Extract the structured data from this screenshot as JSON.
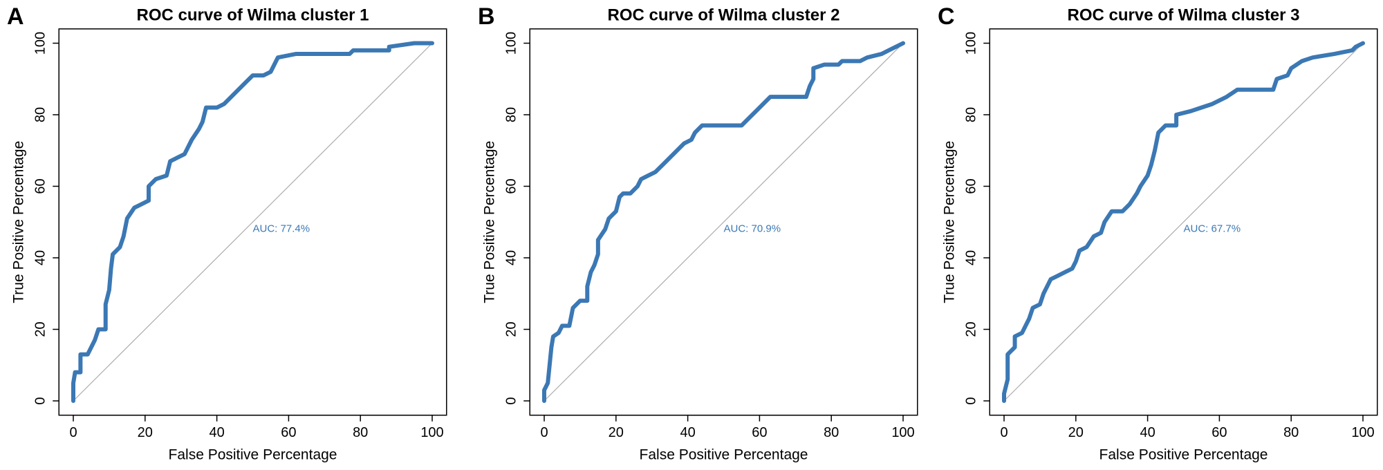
{
  "chart_data": [
    {
      "type": "line",
      "panel_label": "A",
      "title": "ROC curve of Wilma cluster 1",
      "xlabel": "False Positive Percentage",
      "ylabel": "True Positive Percentage",
      "annotation": "AUC: 77.4%",
      "xlim": [
        0,
        100
      ],
      "ylim": [
        0,
        100
      ],
      "xticks": [
        0,
        20,
        40,
        60,
        80,
        100
      ],
      "yticks": [
        0,
        20,
        40,
        60,
        80,
        100
      ],
      "x": [
        0,
        0,
        0.5,
        2,
        2,
        4,
        5,
        6,
        7,
        9,
        9,
        10,
        10.5,
        11,
        13,
        14,
        15,
        17,
        19,
        21,
        21,
        23,
        26,
        27,
        29,
        31,
        33,
        35,
        36,
        37,
        40,
        42,
        44,
        46,
        48,
        50,
        53,
        55,
        57,
        62,
        77,
        78,
        88,
        88,
        95,
        100
      ],
      "series": [
        {
          "color": "#3b78b4",
          "values": [
            0,
            5,
            8,
            8,
            13,
            13,
            15,
            17,
            20,
            20,
            27,
            31,
            37,
            41,
            43,
            46,
            51,
            54,
            55,
            56,
            60,
            62,
            63,
            67,
            68,
            69,
            73,
            76,
            78,
            82,
            82,
            83,
            85,
            87,
            89,
            91,
            91,
            92,
            96,
            97,
            97,
            98,
            98,
            99,
            100,
            100
          ]
        }
      ]
    },
    {
      "type": "line",
      "panel_label": "B",
      "title": "ROC curve of Wilma cluster 2",
      "xlabel": "False Positive Percentage",
      "ylabel": "True Positive Percentage",
      "annotation": "AUC: 70.9%",
      "xlim": [
        0,
        100
      ],
      "ylim": [
        0,
        100
      ],
      "xticks": [
        0,
        20,
        40,
        60,
        80,
        100
      ],
      "yticks": [
        0,
        20,
        40,
        60,
        80,
        100
      ],
      "x": [
        0,
        0,
        1,
        1.5,
        2,
        2.5,
        4,
        5,
        7,
        8,
        10,
        12,
        12,
        13,
        14,
        15,
        15,
        17,
        18,
        20,
        21,
        22,
        24,
        26,
        27,
        29,
        31,
        33,
        35,
        37,
        39,
        41,
        42,
        44,
        55,
        57,
        59,
        61,
        63,
        73,
        74,
        75,
        75,
        78,
        82,
        83,
        88,
        90,
        94,
        96,
        98,
        100
      ],
      "series": [
        {
          "color": "#3b78b4",
          "values": [
            0,
            3,
            5,
            10,
            15,
            18,
            19,
            21,
            21,
            26,
            28,
            28,
            32,
            36,
            38,
            41,
            45,
            48,
            51,
            53,
            57,
            58,
            58,
            60,
            62,
            63,
            64,
            66,
            68,
            70,
            72,
            73,
            75,
            77,
            77,
            79,
            81,
            83,
            85,
            85,
            88,
            90,
            93,
            94,
            94,
            95,
            95,
            96,
            97,
            98,
            99,
            100
          ]
        }
      ]
    },
    {
      "type": "line",
      "panel_label": "C",
      "title": "ROC curve of Wilma cluster 3",
      "xlabel": "False Positive Percentage",
      "ylabel": "True Positive Percentage",
      "annotation": "AUC: 67.7%",
      "xlim": [
        0,
        100
      ],
      "ylim": [
        0,
        100
      ],
      "xticks": [
        0,
        20,
        40,
        60,
        80,
        100
      ],
      "yticks": [
        0,
        20,
        40,
        60,
        80,
        100
      ],
      "x": [
        0,
        0,
        1,
        1,
        2,
        3,
        3,
        5,
        6,
        7,
        8,
        10,
        11,
        13,
        15,
        17,
        19,
        20,
        21,
        23,
        25,
        27,
        28,
        30,
        33,
        35,
        37,
        38,
        40,
        41,
        42,
        43,
        45,
        48,
        48,
        52,
        55,
        58,
        62,
        65,
        75,
        76,
        79,
        80,
        83,
        86,
        92,
        97,
        98,
        100
      ],
      "series": [
        {
          "color": "#3b78b4",
          "values": [
            0,
            2,
            6,
            13,
            14,
            15,
            18,
            19,
            21,
            23,
            26,
            27,
            30,
            34,
            35,
            36,
            37,
            39,
            42,
            43,
            46,
            47,
            50,
            53,
            53,
            55,
            58,
            60,
            63,
            66,
            70,
            75,
            77,
            77,
            80,
            81,
            82,
            83,
            85,
            87,
            87,
            90,
            91,
            93,
            95,
            96,
            97,
            98,
            99,
            100
          ]
        }
      ]
    }
  ]
}
